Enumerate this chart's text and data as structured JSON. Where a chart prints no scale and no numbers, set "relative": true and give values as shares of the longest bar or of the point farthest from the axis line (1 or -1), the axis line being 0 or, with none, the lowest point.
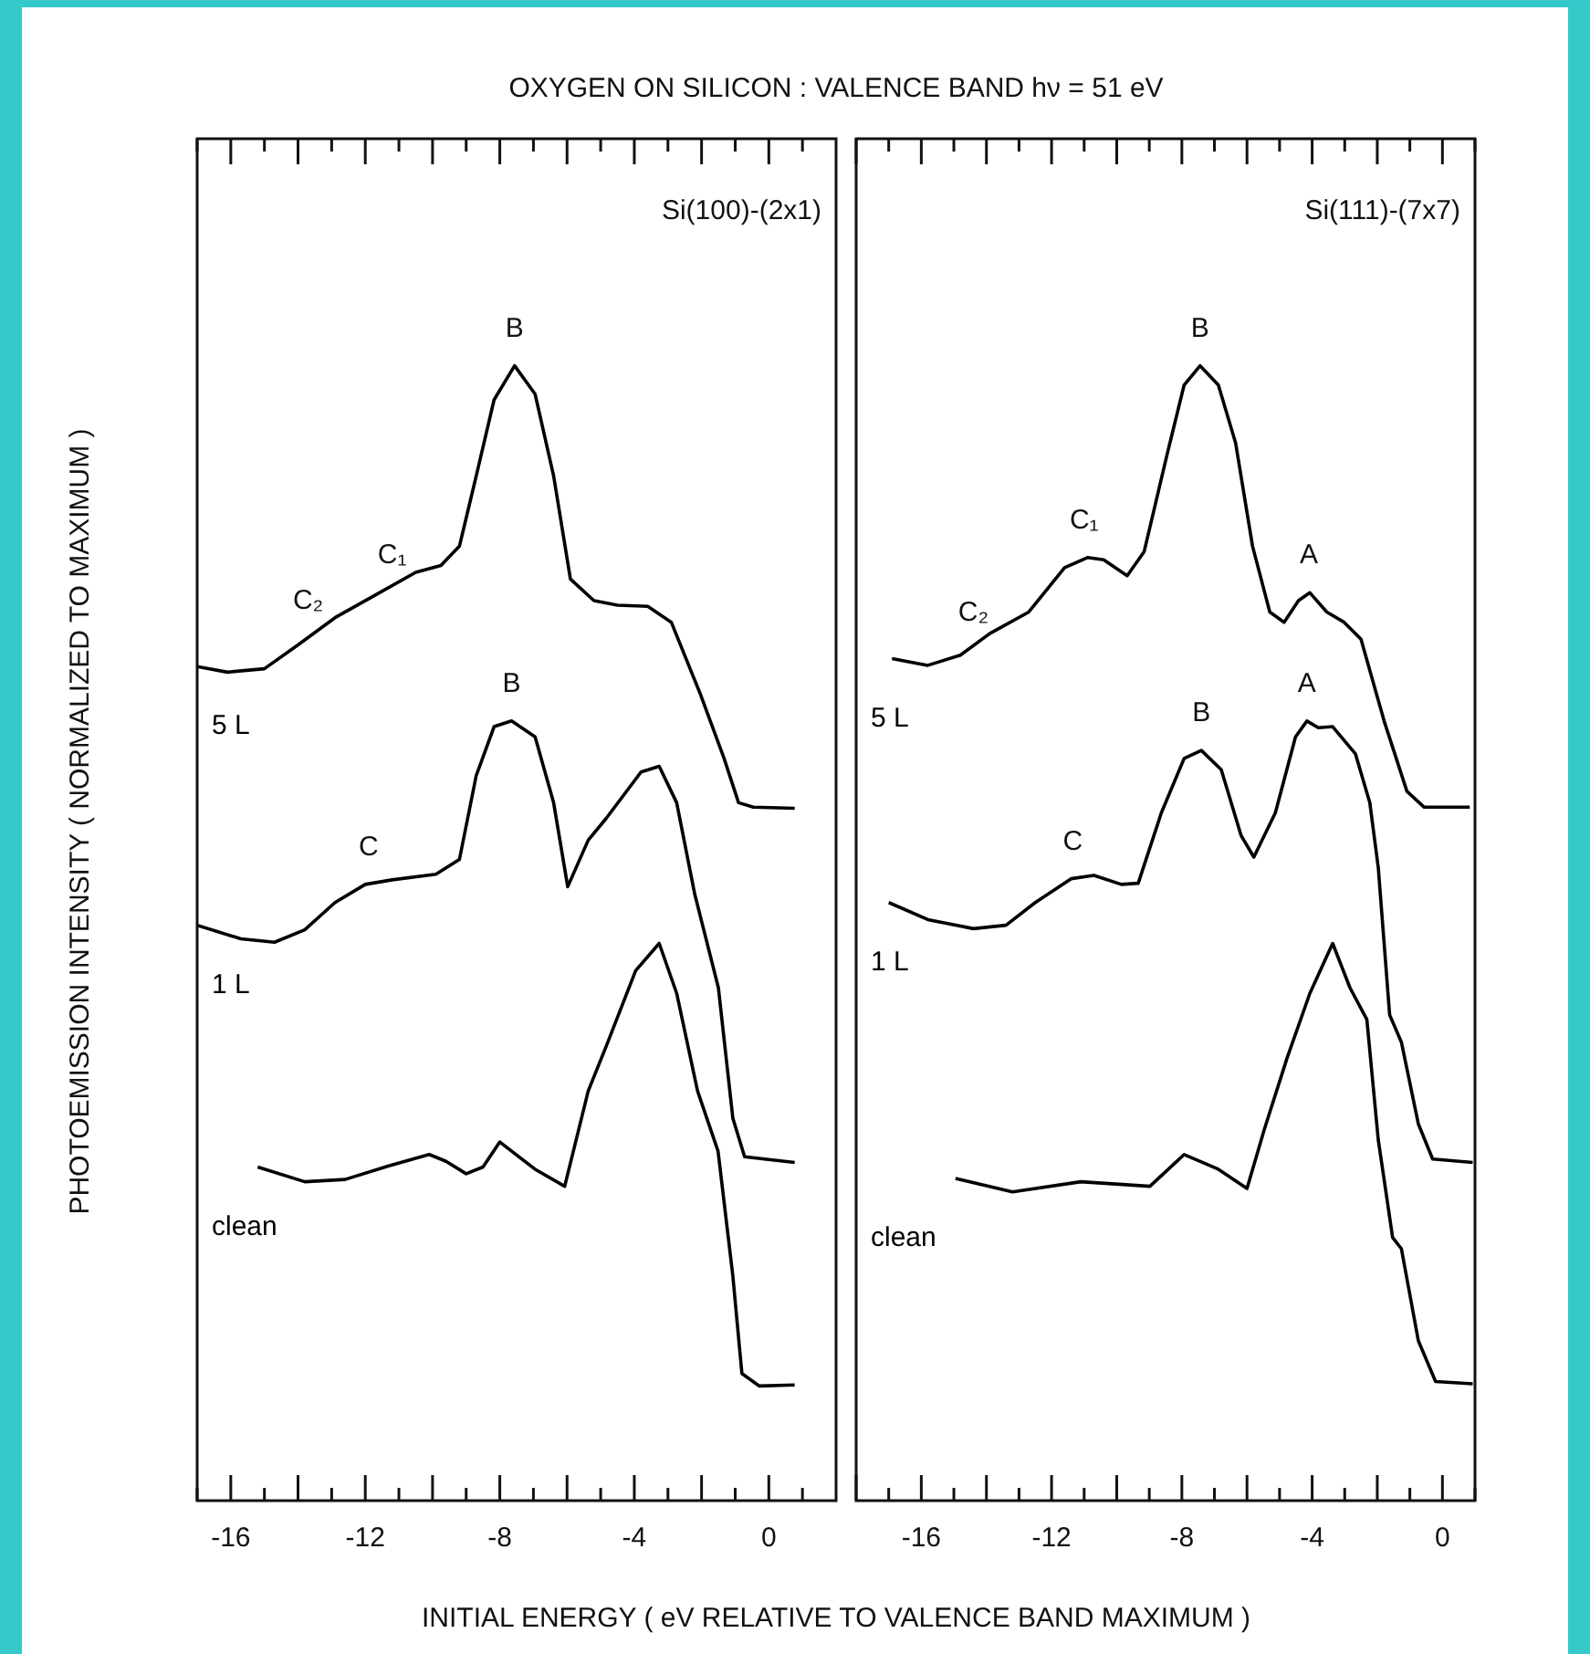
{
  "chart_data": [
    {
      "type": "line",
      "title": "OXYGEN ON SILICON : VALENCE BAND hν = 51 eV",
      "subtitle": "Si(100)-(2x1)",
      "xlabel": "INITIAL ENERGY ( eV RELATIVE TO VALENCE BAND MAXIMUM )",
      "ylabel": "PHOTOEMISSION INTENSITY ( NORMALIZED TO MAXIMUM )",
      "relative": true,
      "marker": "none",
      "line_style": "solid",
      "xlim": [
        -17,
        2
      ],
      "xticks": [
        {
          "value": -17,
          "label": null
        },
        -16,
        {
          "value": -15,
          "label": null
        },
        {
          "value": -14,
          "label": null
        },
        {
          "value": -13,
          "label": null
        },
        -12,
        {
          "value": -11,
          "label": null
        },
        {
          "value": -10,
          "label": null
        },
        {
          "value": -9,
          "label": null
        },
        -8,
        {
          "value": -7,
          "label": null
        },
        {
          "value": -6,
          "label": null
        },
        {
          "value": -5,
          "label": null
        },
        -4,
        {
          "value": -3,
          "label": null
        },
        {
          "value": -2,
          "label": null
        },
        {
          "value": -1,
          "label": null
        },
        0,
        {
          "value": 1,
          "label": null
        }
      ],
      "series": [
        {
          "name": "5 L",
          "color": "#000000",
          "x": [
            -17.0,
            -16.1,
            -15.0,
            -14.0,
            -12.9,
            -11.7,
            -10.5,
            -9.75,
            -9.2,
            -8.7,
            -8.17,
            -7.56,
            -6.95,
            -6.4,
            -5.9,
            -5.2,
            -4.5,
            -3.6,
            -2.9,
            -2.04,
            -1.33,
            -0.9,
            -0.46,
            0.77
          ],
          "values": [
            0.735,
            0.73,
            0.733,
            0.754,
            0.778,
            0.798,
            0.818,
            0.824,
            0.841,
            0.903,
            0.97,
            1.0,
            0.975,
            0.903,
            0.812,
            0.793,
            0.789,
            0.788,
            0.774,
            0.711,
            0.654,
            0.615,
            0.611,
            0.61
          ]
        },
        {
          "name": "1 L",
          "color": "#000000",
          "x": [
            -17.0,
            -15.7,
            -14.7,
            -13.8,
            -12.9,
            -12.0,
            -11.2,
            -9.9,
            -9.2,
            -8.7,
            -8.17,
            -7.65,
            -6.95,
            -6.4,
            -5.98,
            -5.37,
            -4.84,
            -3.8,
            -3.26,
            -2.74,
            -2.2,
            -1.5,
            -1.07,
            -0.72,
            0.77
          ],
          "values": [
            0.507,
            0.495,
            0.492,
            0.503,
            0.527,
            0.543,
            0.547,
            0.552,
            0.565,
            0.639,
            0.682,
            0.687,
            0.673,
            0.615,
            0.541,
            0.582,
            0.601,
            0.642,
            0.647,
            0.615,
            0.534,
            0.452,
            0.337,
            0.303,
            0.298
          ]
        },
        {
          "name": "clean",
          "color": "#000000",
          "x": [
            -15.2,
            -13.8,
            -12.6,
            -11.3,
            -10.1,
            -9.6,
            -9.0,
            -8.5,
            -8.0,
            -6.95,
            -6.07,
            -5.37,
            -4.84,
            -3.96,
            -3.26,
            -2.74,
            -2.12,
            -1.51,
            -1.07,
            -0.8,
            -0.28,
            0.77
          ],
          "values": [
            0.294,
            0.281,
            0.283,
            0.295,
            0.305,
            0.299,
            0.288,
            0.294,
            0.316,
            0.292,
            0.277,
            0.361,
            0.4,
            0.467,
            0.491,
            0.447,
            0.361,
            0.308,
            0.198,
            0.112,
            0.101,
            0.102
          ]
        }
      ],
      "annotations": [
        {
          "text": "B",
          "x": -7.56,
          "y": 1.0
        },
        {
          "text": "C₁",
          "x": -11.2,
          "y": 0.8
        },
        {
          "text": "C₂",
          "x": -13.7,
          "y": 0.76
        },
        {
          "text": "B",
          "x": -7.65,
          "y": 0.687
        },
        {
          "text": "C",
          "x": -11.9,
          "y": 0.543
        }
      ]
    },
    {
      "type": "line",
      "subtitle": "Si(111)-(7x7)",
      "relative": true,
      "marker": "none",
      "line_style": "solid",
      "xlim": [
        -18,
        1
      ],
      "xticks": [
        {
          "value": -18,
          "label": null
        },
        {
          "value": -17,
          "label": null
        },
        -16,
        {
          "value": -15,
          "label": null
        },
        {
          "value": -14,
          "label": null
        },
        {
          "value": -13,
          "label": null
        },
        -12,
        {
          "value": -11,
          "label": null
        },
        {
          "value": -10,
          "label": null
        },
        {
          "value": -9,
          "label": null
        },
        -8,
        {
          "value": -7,
          "label": null
        },
        {
          "value": -6,
          "label": null
        },
        {
          "value": -5,
          "label": null
        },
        -4,
        {
          "value": -3,
          "label": null
        },
        {
          "value": -2,
          "label": null
        },
        {
          "value": -1,
          "label": null
        },
        0,
        {
          "value": 1,
          "label": null
        }
      ],
      "series": [
        {
          "name": "5 L",
          "color": "#000000",
          "x": [
            -16.9,
            -15.8,
            -14.8,
            -13.9,
            -12.7,
            -11.6,
            -10.9,
            -10.4,
            -9.68,
            -9.16,
            -8.46,
            -7.93,
            -7.44,
            -6.88,
            -6.35,
            -5.83,
            -5.3,
            -4.86,
            -4.42,
            -4.07,
            -3.55,
            -3.02,
            -2.5,
            -1.79,
            -1.09,
            -0.56,
            0.84
          ],
          "values": [
            0.742,
            0.736,
            0.745,
            0.764,
            0.783,
            0.822,
            0.831,
            0.829,
            0.815,
            0.836,
            0.921,
            0.983,
            1.0,
            0.983,
            0.932,
            0.841,
            0.783,
            0.774,
            0.793,
            0.8,
            0.783,
            0.774,
            0.759,
            0.687,
            0.625,
            0.611,
            0.611
          ]
        },
        {
          "name": "1 L",
          "color": "#000000",
          "x": [
            -17.0,
            -15.8,
            -14.4,
            -13.4,
            -12.5,
            -11.4,
            -10.7,
            -9.86,
            -9.34,
            -8.63,
            -7.93,
            -7.4,
            -6.79,
            -6.18,
            -5.79,
            -5.13,
            -4.51,
            -4.16,
            -3.81,
            -3.37,
            -2.67,
            -2.23,
            -1.97,
            -1.62,
            -1.26,
            -0.74,
            -0.3,
            0.93
          ],
          "values": [
            0.527,
            0.512,
            0.504,
            0.507,
            0.527,
            0.548,
            0.551,
            0.543,
            0.544,
            0.606,
            0.654,
            0.661,
            0.644,
            0.586,
            0.567,
            0.606,
            0.673,
            0.687,
            0.681,
            0.682,
            0.658,
            0.615,
            0.558,
            0.428,
            0.404,
            0.332,
            0.301,
            0.298
          ]
        },
        {
          "name": "clean",
          "color": "#000000",
          "x": [
            -14.95,
            -13.2,
            -11.1,
            -8.98,
            -7.93,
            -6.88,
            -6.0,
            -5.47,
            -4.77,
            -4.07,
            -3.37,
            -2.84,
            -2.32,
            -1.97,
            -1.53,
            -1.26,
            -0.74,
            -0.21,
            0.93
          ],
          "values": [
            0.284,
            0.272,
            0.281,
            0.277,
            0.305,
            0.292,
            0.275,
            0.327,
            0.39,
            0.447,
            0.491,
            0.452,
            0.424,
            0.318,
            0.232,
            0.222,
            0.141,
            0.105,
            0.103
          ]
        }
      ],
      "annotations": [
        {
          "text": "B",
          "x": -7.44,
          "y": 1.0
        },
        {
          "text": "C₁",
          "x": -11.0,
          "y": 0.831
        },
        {
          "text": "C₂",
          "x": -14.4,
          "y": 0.75
        },
        {
          "text": "A",
          "x": -4.1,
          "y": 0.8
        },
        {
          "text": "B",
          "x": -7.4,
          "y": 0.661
        },
        {
          "text": "A",
          "x": -4.16,
          "y": 0.687
        },
        {
          "text": "C",
          "x": -11.35,
          "y": 0.548
        }
      ]
    }
  ]
}
